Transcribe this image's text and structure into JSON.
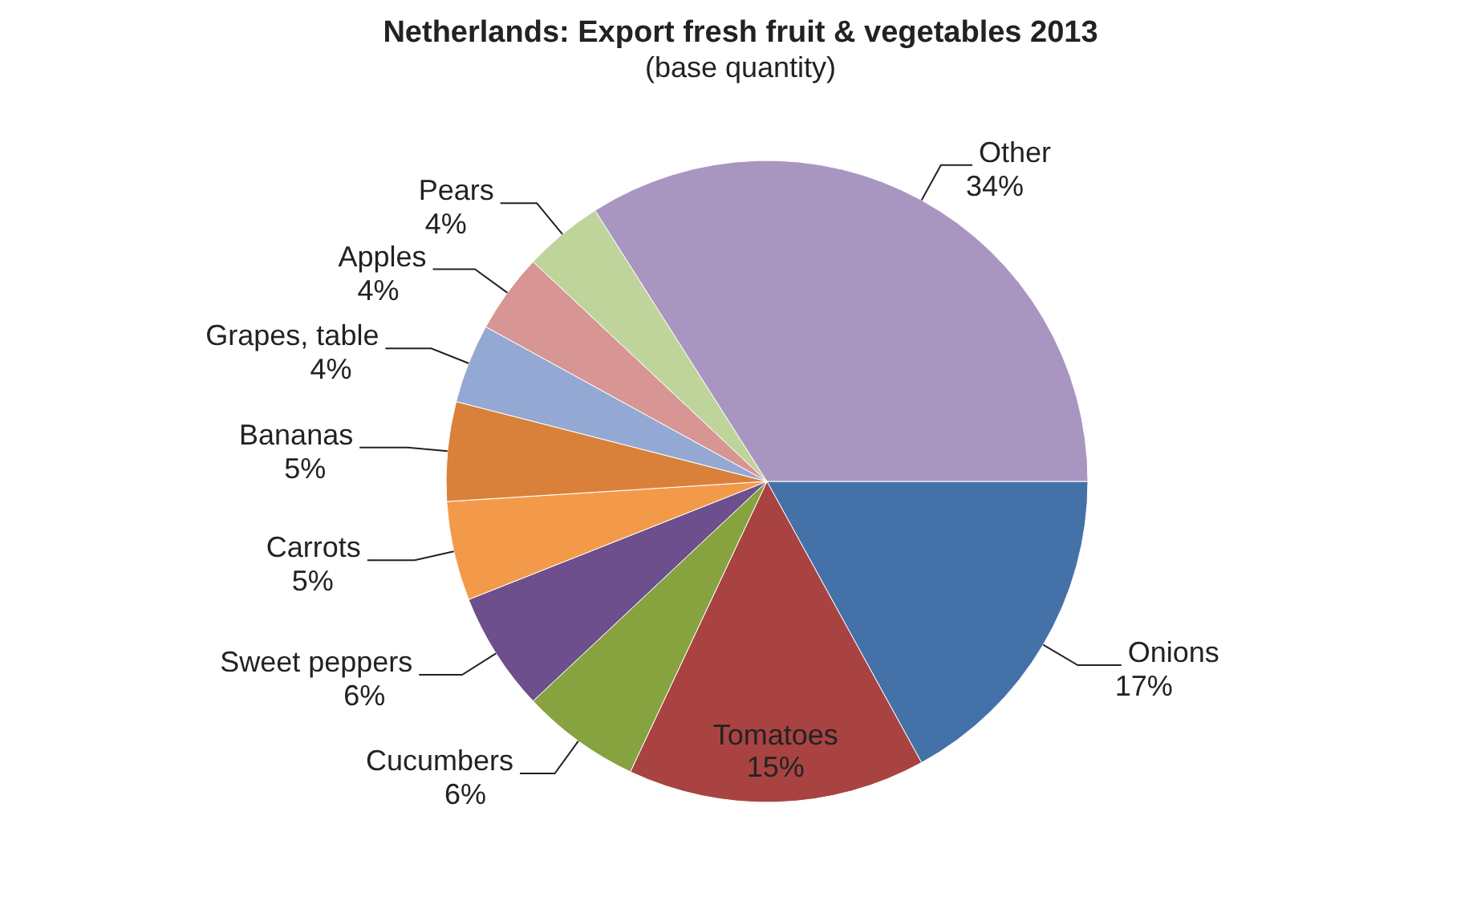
{
  "chart_data": {
    "type": "pie",
    "title": "Netherlands: Export fresh fruit & vegetables 2013",
    "subtitle": "(base quantity)",
    "categories": [
      "Onions",
      "Tomatoes",
      "Cucumbers",
      "Sweet peppers",
      "Carrots",
      "Bananas",
      "Grapes, table",
      "Apples",
      "Pears",
      "Other"
    ],
    "values": [
      17,
      15,
      6,
      6,
      5,
      5,
      4,
      4,
      4,
      34
    ],
    "colors": [
      "#4471a8",
      "#a84342",
      "#86a33f",
      "#6c4f8c",
      "#f39a4a",
      "#d9813a",
      "#93a9d3",
      "#d79593",
      "#bfd49a",
      "#a896c0"
    ],
    "value_labels": [
      "17%",
      "15%",
      "6%",
      "6%",
      "5%",
      "5%",
      "4%",
      "4%",
      "4%",
      "34%"
    ],
    "legend": false
  }
}
